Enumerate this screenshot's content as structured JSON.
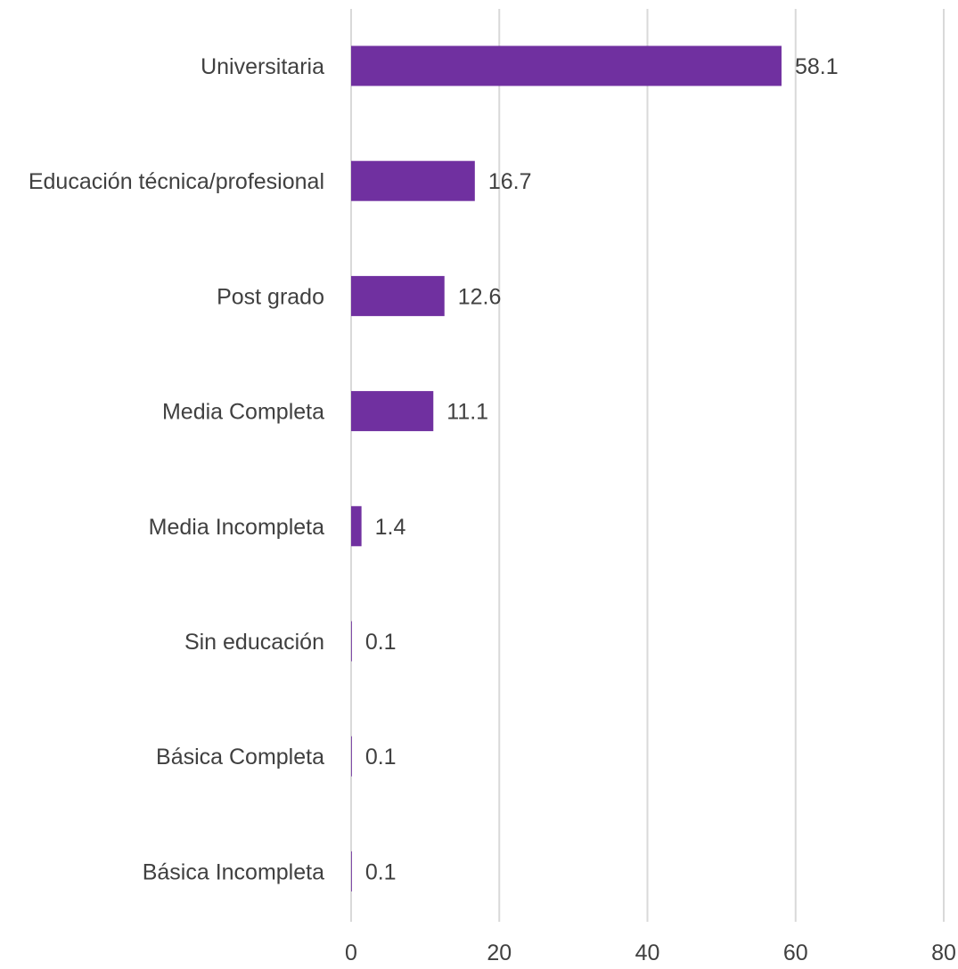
{
  "chart_data": {
    "type": "bar",
    "orientation": "horizontal",
    "title": "",
    "xlabel": "",
    "ylabel": "",
    "categories": [
      "Universitaria",
      "Educación técnica/profesional",
      "Post grado",
      "Media Completa",
      "Media Incompleta",
      "Sin educación",
      "Básica Completa",
      "Básica Incompleta"
    ],
    "values": [
      58.1,
      16.7,
      12.6,
      11.1,
      1.4,
      0.1,
      0.1,
      0.1
    ],
    "data_labels": [
      "58.1",
      "16.7",
      "12.6",
      "11.1",
      "1.4",
      "0.1",
      "0.1",
      "0.1"
    ],
    "xlim": [
      0,
      80
    ],
    "xticks": [
      0,
      20,
      40,
      60,
      80
    ],
    "xtick_labels": [
      "0",
      "20",
      "40",
      "60",
      "80"
    ],
    "grid": true,
    "legend": "none",
    "bar_color": "#7030a0"
  }
}
